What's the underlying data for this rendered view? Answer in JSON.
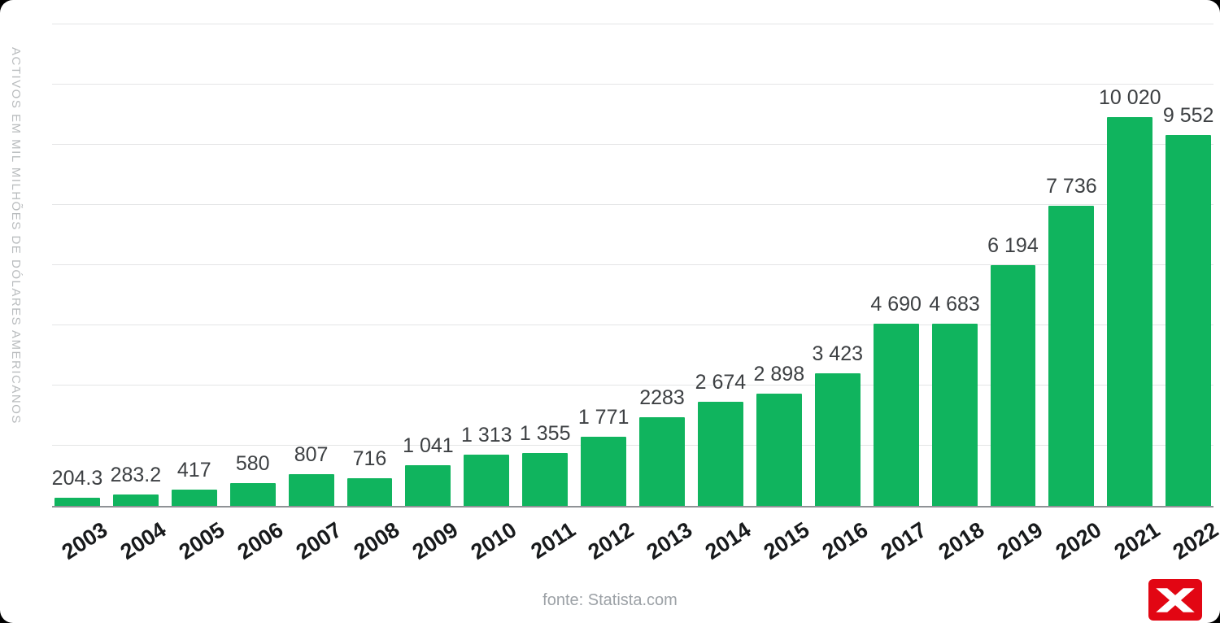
{
  "page": {
    "background": "#ffffff"
  },
  "chart_data": {
    "type": "bar",
    "title": "",
    "xlabel": "",
    "ylabel": "ACTIVOS EM MIL MILHÕES DE DÓLARES AMERICANOS",
    "categories": [
      "2003",
      "2004",
      "2005",
      "2006",
      "2007",
      "2008",
      "2009",
      "2010",
      "2011",
      "2012",
      "2013",
      "2014",
      "2015",
      "2016",
      "2017",
      "2018",
      "2019",
      "2020",
      "2021",
      "2022"
    ],
    "values": [
      204.3,
      283.2,
      417,
      580,
      807,
      716,
      1041,
      1313,
      1355,
      1771,
      2283,
      2674,
      2898,
      3423,
      4690,
      4683,
      6194,
      7736,
      10020,
      9552
    ],
    "value_labels": [
      "204.3",
      "283.2",
      "417",
      "580",
      "807",
      "716",
      "1 041",
      "1 313",
      "1 355",
      "1 771",
      "2283",
      "2 674",
      "2 898",
      "3 423",
      "4 690",
      "4 683",
      "6 194",
      "7 736",
      "10 020",
      "9 552"
    ],
    "ylim": [
      0,
      12400
    ],
    "grid": true,
    "gridline_count": 8,
    "legend": false,
    "bar_color": "#10b45e",
    "source": "fonte: Statista.com"
  },
  "colors": {
    "bar_green": "#10b45e",
    "logo_red": "#e20613",
    "axis_line": "#8f9296",
    "gridline": "#e4e5e6",
    "value_label": "#3d4043",
    "x_label": "#181a1c",
    "y_title": "#b9bcbe",
    "footer": "#9ca1a6"
  },
  "logo": {
    "name": "xtb-logo"
  }
}
